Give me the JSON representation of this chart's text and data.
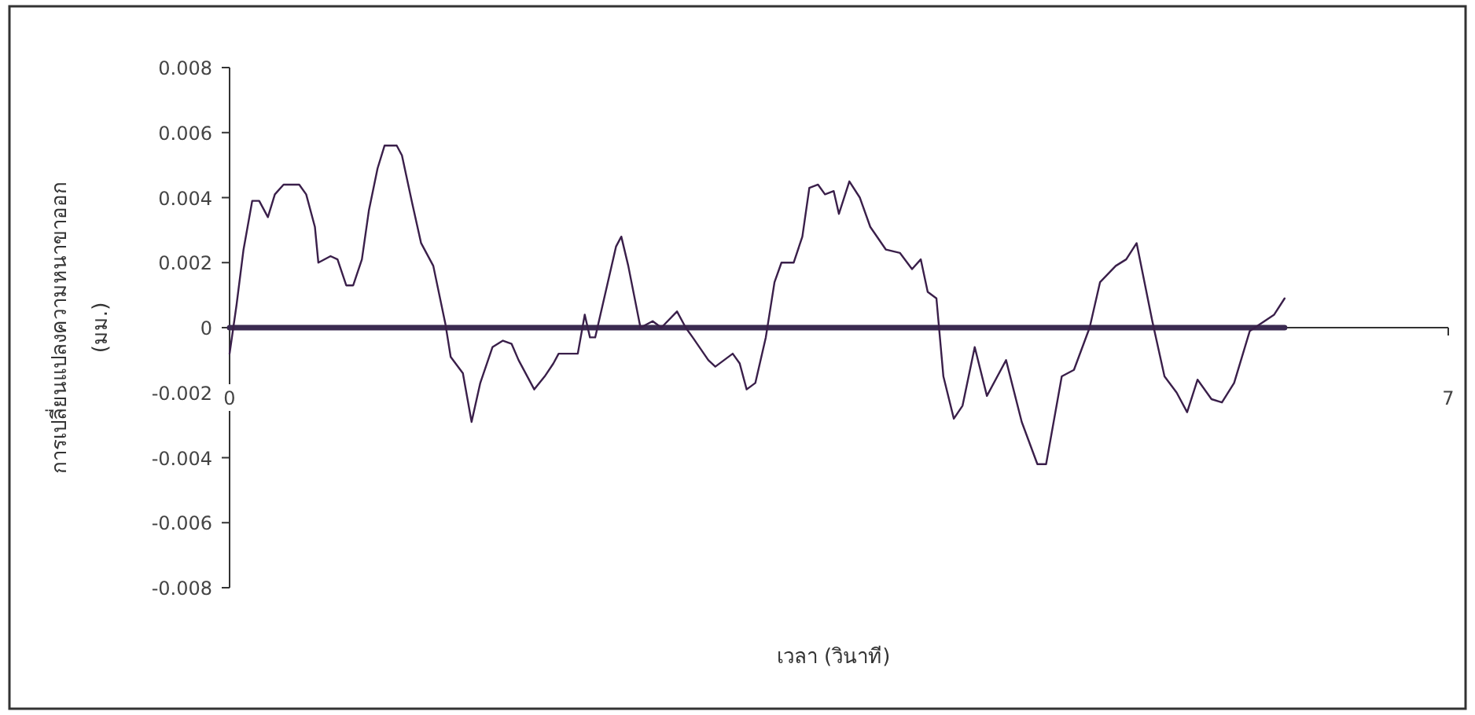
{
  "chart_data": {
    "type": "line",
    "xlabel": "เวลา (วินาที)",
    "ylabel": "การเปลี่ยนแปลงความหนาขาออก\n(มม.)",
    "xlim": [
      0,
      7
    ],
    "xticks": [
      0,
      7
    ],
    "ylim": [
      -0.008,
      0.008
    ],
    "yticks": [
      -0.008,
      -0.006,
      -0.004,
      -0.002,
      0,
      0.002,
      0.004,
      0.006,
      0.008
    ],
    "series": [
      {
        "color": "#3a1f4a",
        "x": [
          0,
          0.04,
          0.08,
          0.13,
          0.17,
          0.22,
          0.26,
          0.31,
          0.4,
          0.44,
          0.49,
          0.51,
          0.58,
          0.62,
          0.67,
          0.71,
          0.76,
          0.8,
          0.85,
          0.89,
          0.96,
          0.99,
          1.05,
          1.1,
          1.17,
          1.24,
          1.27,
          1.34,
          1.39,
          1.44,
          1.51,
          1.57,
          1.62,
          1.66,
          1.75,
          1.81,
          1.86,
          1.89,
          2.0,
          2.04,
          2.07,
          2.1,
          2.13,
          2.22,
          2.25,
          2.29,
          2.36,
          2.43,
          2.48,
          2.57,
          2.62,
          2.66,
          2.75,
          2.79,
          2.84,
          2.89,
          2.93,
          2.97,
          3.02,
          3.08,
          3.13,
          3.17,
          3.24,
          3.29,
          3.33,
          3.38,
          3.42,
          3.47,
          3.5,
          3.56,
          3.62,
          3.68,
          3.77,
          3.85,
          3.92,
          3.97,
          4.01,
          4.06,
          4.1,
          4.16,
          4.21,
          4.28,
          4.35,
          4.46,
          4.55,
          4.64,
          4.69,
          4.78,
          4.85,
          4.94,
          5.0,
          5.09,
          5.15,
          5.21,
          5.3,
          5.37,
          5.44,
          5.5,
          5.56,
          5.64,
          5.7,
          5.77,
          5.86,
          6.0,
          6.06
        ],
        "values": [
          -0.0008,
          0.0007,
          0.0024,
          0.0039,
          0.0039,
          0.0034,
          0.0041,
          0.0044,
          0.0044,
          0.0041,
          0.0031,
          0.002,
          0.0022,
          0.0021,
          0.0013,
          0.0013,
          0.0021,
          0.0036,
          0.0049,
          0.0056,
          0.0056,
          0.0053,
          0.0038,
          0.0026,
          0.0019,
          0.0001,
          -0.0009,
          -0.0014,
          -0.0029,
          -0.0017,
          -0.0006,
          -0.0004,
          -0.0005,
          -0.001,
          -0.0019,
          -0.0015,
          -0.0011,
          -0.0008,
          -0.0008,
          0.0004,
          -0.0003,
          -0.0003,
          0.0004,
          0.0025,
          0.0028,
          0.0019,
          0,
          0.0002,
          0,
          0.0005,
          0,
          -0.0003,
          -0.001,
          -0.0012,
          -0.001,
          -0.0008,
          -0.0011,
          -0.0019,
          -0.0017,
          -0.0003,
          0.0014,
          0.002,
          0.002,
          0.0028,
          0.0043,
          0.0044,
          0.0041,
          0.0042,
          0.0035,
          0.0045,
          0.004,
          0.0031,
          0.0024,
          0.0023,
          0.0018,
          0.0021,
          0.0011,
          0.0009,
          -0.0015,
          -0.0028,
          -0.0024,
          -0.0006,
          -0.0021,
          -0.001,
          -0.0029,
          -0.0042,
          -0.0042,
          -0.0015,
          -0.0013,
          0,
          0.0014,
          0.0019,
          0.0021,
          0.0026,
          0.0002,
          -0.0015,
          -0.002,
          -0.0026,
          -0.0016,
          -0.0022,
          -0.0023,
          -0.0017,
          -0.0001,
          0.0004,
          0.0009
        ]
      },
      {
        "color": "#3a2a50",
        "x": [
          0,
          6.06
        ],
        "values": [
          0,
          0
        ]
      }
    ]
  }
}
